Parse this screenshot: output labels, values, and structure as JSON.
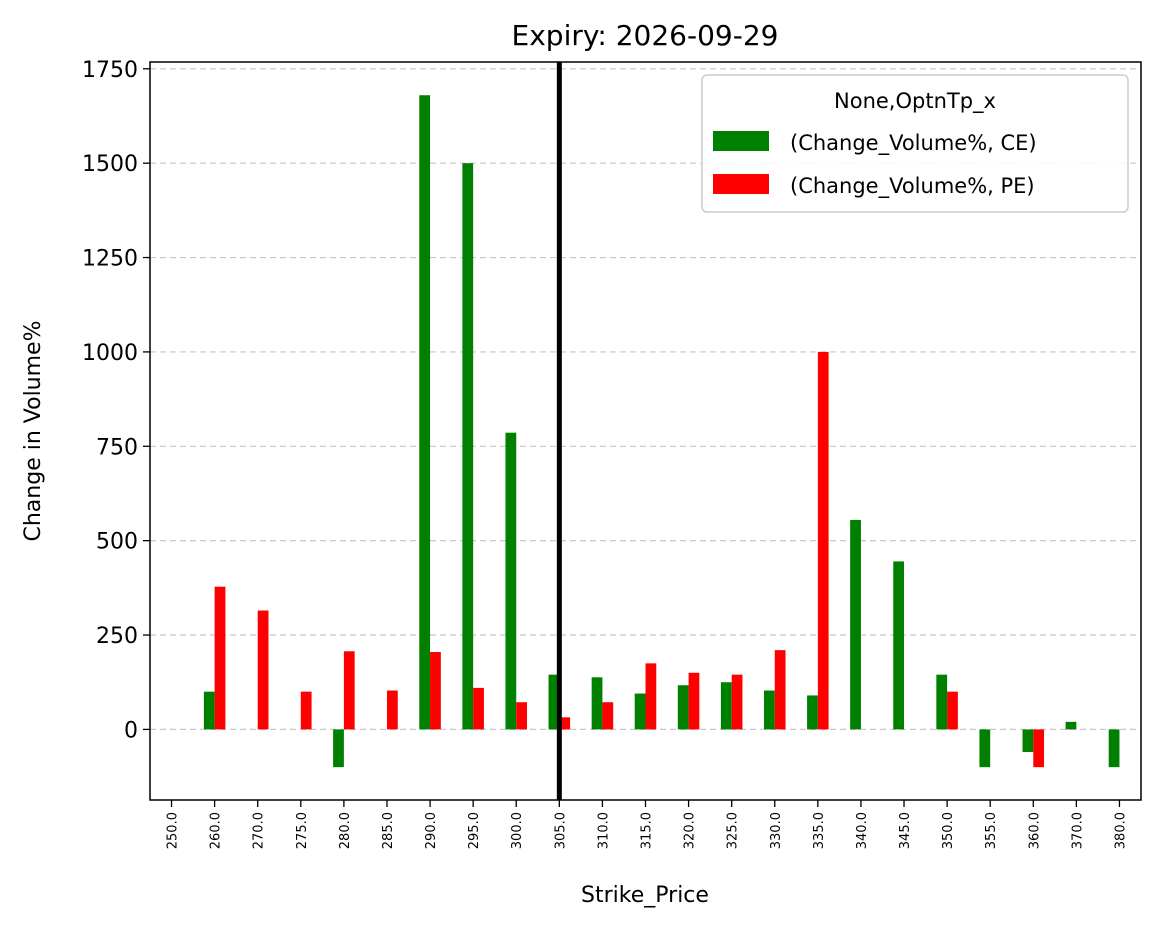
{
  "chart_data": {
    "type": "bar",
    "title": "Expiry: 2026-09-29",
    "xlabel": "Strike_Price",
    "ylabel": "Change in Volume%",
    "categories": [
      "250.0",
      "260.0",
      "270.0",
      "275.0",
      "280.0",
      "285.0",
      "290.0",
      "295.0",
      "300.0",
      "305.0",
      "310.0",
      "315.0",
      "320.0",
      "325.0",
      "330.0",
      "335.0",
      "340.0",
      "345.0",
      "350.0",
      "355.0",
      "360.0",
      "370.0",
      "380.0"
    ],
    "series": [
      {
        "name": "(Change_Volume%, CE)",
        "color": "#008000",
        "values": [
          0,
          100,
          0,
          0,
          -100,
          0,
          1680,
          1500,
          786,
          145,
          138,
          95,
          117,
          125,
          103,
          90,
          555,
          445,
          145,
          -100,
          -60,
          20,
          -100
        ]
      },
      {
        "name": "(Change_Volume%, PE)",
        "color": "#ff0000",
        "values": [
          0,
          378,
          315,
          100,
          207,
          103,
          205,
          110,
          72,
          32,
          72,
          175,
          150,
          145,
          210,
          1000,
          0,
          0,
          100,
          0,
          -100,
          0,
          0
        ]
      }
    ],
    "ylim": [
      -187,
      1768
    ],
    "yticks": [
      0,
      250,
      500,
      750,
      1000,
      1250,
      1500,
      1750
    ],
    "grid": "y-dashed",
    "vline_category": "305.0",
    "vline_color": "#000000",
    "legend": {
      "title": "None,OptnTp_x",
      "placement": "top-right"
    }
  }
}
